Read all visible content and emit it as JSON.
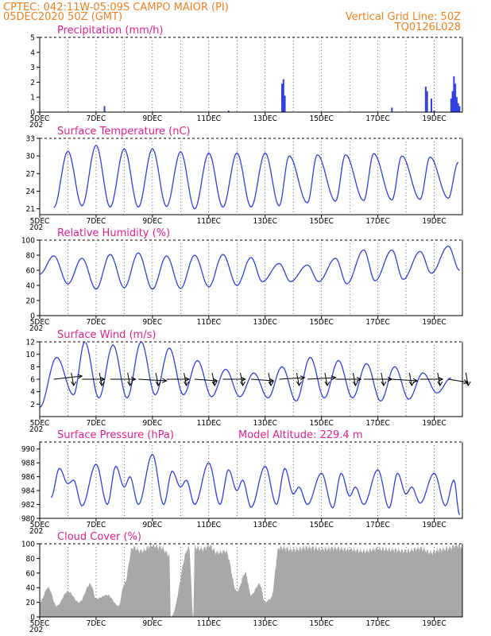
{
  "header": {
    "line1": "CPTEC:   042:11W-05:09S   CAMPO MAIOR (PI)",
    "line2": "05DEC2020 50Z (GMT)",
    "grid_note": "Vertical Grid Line: 50Z",
    "code": "TQ0126L028"
  },
  "colors": {
    "header": "#f08020",
    "title": "#e0208f",
    "line": "#3040e0",
    "cloud": "#a8a8a8"
  },
  "x_axis": {
    "start_day": 5,
    "end_day": 20,
    "labels": [
      "5DEC",
      "7DEC",
      "9DEC",
      "11DEC",
      "13DEC",
      "15DEC",
      "17DEC",
      "19DEC"
    ],
    "label_days": [
      5,
      7,
      9,
      11,
      13,
      15,
      17,
      19
    ],
    "year_stub": "202"
  },
  "chart_data": [
    {
      "id": "precip",
      "type": "bar",
      "title": "Precipitation (mm/h)",
      "ylim": [
        0,
        5
      ],
      "yticks": [
        "0",
        "1",
        "2",
        "3",
        "4",
        "5"
      ],
      "x_days": [
        7.3,
        11.7,
        13.6,
        13.65,
        13.7,
        17.5,
        18.7,
        18.75,
        18.9,
        19.0,
        19.6,
        19.65,
        19.7,
        19.75,
        19.8,
        19.85,
        19.9
      ],
      "values": [
        0.4,
        0.1,
        1.9,
        2.2,
        1.1,
        0.3,
        1.7,
        1.4,
        0.9,
        0.1,
        0.9,
        1.4,
        2.4,
        1.9,
        1.0,
        0.6,
        0.4
      ]
    },
    {
      "id": "temp",
      "type": "line",
      "title": "Surface Temperature (nC)",
      "ylim": [
        20,
        33
      ],
      "yticks": [
        "21",
        "24",
        "27",
        "30",
        "33"
      ],
      "min_days": [
        5.5,
        6.5,
        7.5,
        8.5,
        9.5,
        10.5,
        11.5,
        12.5,
        13.5,
        14.5,
        15.5,
        16.5,
        17.5,
        18.5,
        19.5
      ],
      "min_vals": [
        21.2,
        21.5,
        21.3,
        21.3,
        21.4,
        21.0,
        21.3,
        21.3,
        21.5,
        22.0,
        22.3,
        22.4,
        22.5,
        22.6,
        22.8
      ],
      "max_days": [
        6.0,
        7.0,
        8.0,
        9.0,
        10.0,
        11.0,
        12.0,
        13.0,
        13.85,
        14.85,
        15.85,
        16.85,
        17.85,
        18.85,
        19.85
      ],
      "max_vals": [
        30.8,
        31.8,
        31.2,
        31.2,
        30.7,
        30.5,
        30.5,
        30.5,
        30.0,
        30.2,
        30.2,
        30.4,
        30.0,
        29.8,
        28.9
      ]
    },
    {
      "id": "rh",
      "type": "line",
      "title": "Relative Humidity (%)",
      "ylim": [
        0,
        100
      ],
      "yticks": [
        "0",
        "20",
        "40",
        "60",
        "80",
        "100"
      ],
      "max_days": [
        5.5,
        6.5,
        7.5,
        8.5,
        9.5,
        10.5,
        11.5,
        12.5,
        13.5,
        14.5,
        15.5,
        16.5,
        17.5,
        18.5,
        19.5
      ],
      "max_vals": [
        79,
        76,
        81,
        83,
        79,
        80,
        81,
        77,
        69,
        67,
        76,
        87,
        87,
        85,
        92
      ],
      "min_days": [
        5.0,
        6.0,
        7.0,
        8.0,
        9.0,
        10.0,
        11.0,
        12.0,
        12.9,
        13.9,
        14.9,
        15.9,
        16.9,
        17.9,
        18.9,
        19.9
      ],
      "min_vals": [
        55,
        42,
        35,
        37,
        35,
        36,
        38,
        40,
        45,
        45,
        45,
        42,
        46,
        48,
        56,
        60
      ]
    },
    {
      "id": "wind",
      "type": "line",
      "title": "Surface Wind (m/s)",
      "ylim": [
        0,
        12
      ],
      "yticks": [
        "2",
        "4",
        "6",
        "8",
        "10",
        "12"
      ],
      "max_days": [
        5.6,
        6.6,
        7.6,
        8.6,
        9.6,
        10.6,
        11.6,
        12.6,
        13.6,
        14.6,
        15.6,
        16.6,
        17.6,
        18.6,
        19.6
      ],
      "max_vals": [
        9.5,
        12.0,
        11.5,
        12.0,
        11.0,
        9.0,
        7.6,
        7.0,
        8.0,
        9.5,
        9.0,
        8.5,
        8.0,
        7.0,
        6.2
      ],
      "min_days": [
        5.0,
        6.2,
        7.1,
        8.1,
        9.1,
        10.1,
        11.1,
        12.1,
        13.1,
        14.1,
        15.1,
        16.1,
        17.1,
        18.1,
        19.1
      ],
      "min_vals": [
        1.5,
        3.5,
        3.0,
        3.0,
        3.5,
        3.5,
        3.2,
        3.2,
        3.0,
        2.5,
        3.0,
        3.0,
        2.5,
        2.8,
        3.8
      ],
      "arrow_days": [
        5.5,
        6.5,
        7.5,
        8.5,
        9.5,
        10.5,
        11.5,
        12.5,
        13.5,
        14.5,
        15.5,
        16.5,
        17.5,
        18.5,
        19.5
      ],
      "arrow_dx": [
        1.0,
        0.8,
        0.9,
        1.0,
        0.8,
        0.8,
        0.8,
        0.8,
        0.9,
        1.0,
        0.9,
        1.0,
        0.9,
        0.8,
        0.7
      ],
      "arrow_dy": [
        -0.1,
        0.0,
        0.0,
        0.05,
        0.0,
        0.05,
        0.0,
        0.05,
        -0.05,
        -0.05,
        0.0,
        0.0,
        0.05,
        0.0,
        0.1
      ]
    },
    {
      "id": "pres",
      "type": "line",
      "title": "Surface Pressure (hPa)",
      "model_altitude": "Model Altitude: 229.4  m",
      "ylim": [
        980,
        991
      ],
      "yticks": [
        "980",
        "982",
        "984",
        "986",
        "988",
        "990"
      ],
      "max_days": [
        5.7,
        6.2,
        7.0,
        7.7,
        8.2,
        9.0,
        9.7,
        10.2,
        11.0,
        11.7,
        12.2,
        13.0,
        13.7,
        14.2,
        15.0,
        15.7,
        16.2,
        17.0,
        17.7,
        18.2,
        19.0,
        19.7
      ],
      "max_vals": [
        987.2,
        985.5,
        987.8,
        987.5,
        986.0,
        989.2,
        986.8,
        985.5,
        988.0,
        987.0,
        985.5,
        987.5,
        987.2,
        984.5,
        986.5,
        986.5,
        984.5,
        987.0,
        986.5,
        984.5,
        986.5,
        985.5
      ],
      "min_days": [
        5.4,
        6.0,
        6.5,
        7.4,
        8.0,
        8.5,
        9.4,
        10.0,
        10.5,
        11.4,
        12.0,
        12.5,
        13.4,
        14.0,
        14.5,
        15.4,
        16.0,
        16.5,
        17.4,
        18.0,
        18.5,
        19.4,
        19.9
      ],
      "min_vals": [
        983.0,
        985.0,
        981.8,
        982.0,
        984.5,
        982.0,
        982.0,
        984.5,
        982.0,
        982.0,
        984.0,
        981.6,
        982.0,
        983.5,
        982.0,
        981.5,
        983.2,
        982.0,
        981.5,
        983.5,
        982.2,
        981.8,
        980.5
      ]
    },
    {
      "id": "cloud",
      "type": "area",
      "title": "Cloud Cover (%)",
      "ylim": [
        0,
        100
      ],
      "yticks": [
        "0",
        "20",
        "40",
        "60",
        "80",
        "100"
      ],
      "knot_days": [
        5.0,
        5.3,
        5.6,
        6.0,
        6.4,
        6.8,
        7.0,
        7.4,
        7.8,
        8.0,
        8.3,
        8.6,
        9.0,
        9.3,
        9.6,
        9.65,
        10.3,
        10.45,
        10.5,
        10.8,
        11.0,
        11.3,
        11.6,
        12.0,
        12.3,
        12.5,
        12.8,
        13.0,
        13.2,
        13.5,
        14.0,
        14.5,
        15.0,
        15.5,
        16.0,
        16.5,
        17.0,
        17.5,
        18.0,
        18.5,
        18.9,
        19.2,
        19.5,
        19.8,
        20.0
      ],
      "knot_vals": [
        20,
        40,
        15,
        35,
        20,
        45,
        25,
        30,
        15,
        45,
        95,
        90,
        98,
        95,
        85,
        0,
        95,
        0,
        95,
        93,
        98,
        88,
        90,
        35,
        60,
        30,
        45,
        20,
        25,
        95,
        92,
        95,
        93,
        94,
        92,
        90,
        93,
        92,
        90,
        94,
        88,
        92,
        94,
        98,
        96
      ]
    }
  ]
}
